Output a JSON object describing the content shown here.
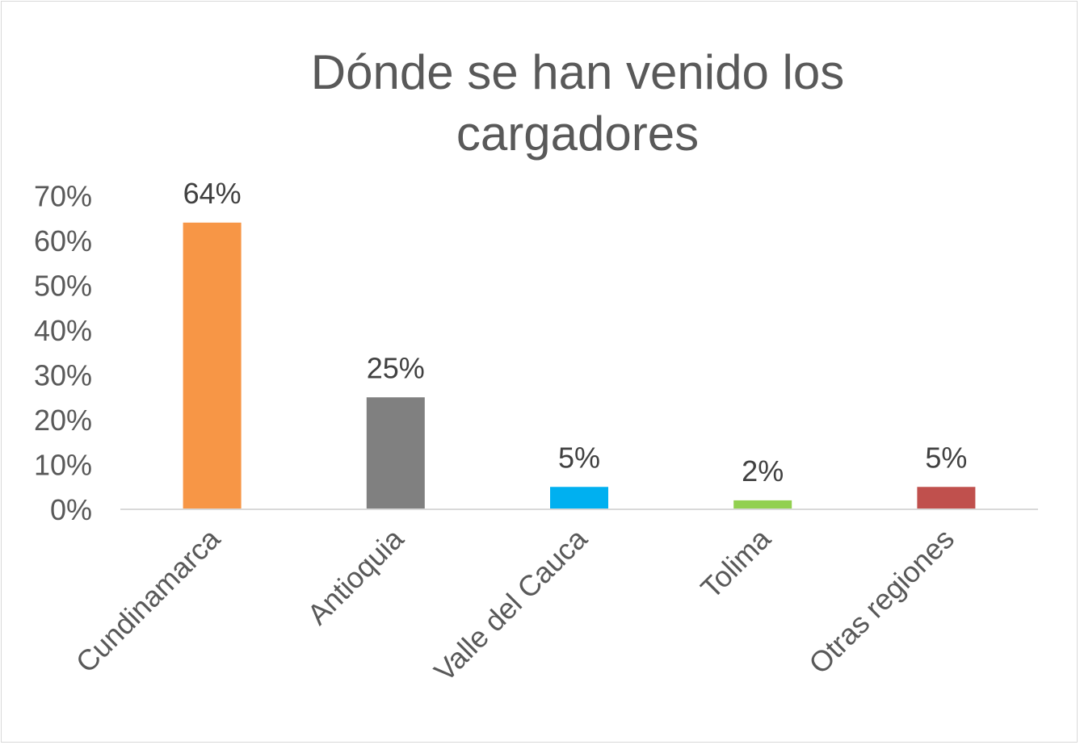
{
  "chart_data": {
    "type": "bar",
    "title_lines": [
      "Dónde se han venido los",
      "cargadores"
    ],
    "categories": [
      "Cundinamarca",
      "Antioquia",
      "Valle del Cauca",
      "Tolima",
      "Otras regiones"
    ],
    "values": [
      64,
      25,
      5,
      2,
      5
    ],
    "value_labels": [
      "64%",
      "25%",
      "5%",
      "2%",
      "5%"
    ],
    "colors": [
      "#f79646",
      "#808080",
      "#00b0f0",
      "#92d050",
      "#c0504d"
    ],
    "ylim": [
      0,
      70
    ],
    "yticks": [
      0,
      10,
      20,
      30,
      40,
      50,
      60,
      70
    ],
    "ytick_labels": [
      "0%",
      "10%",
      "20%",
      "30%",
      "40%",
      "50%",
      "60%",
      "70%"
    ],
    "xlabel": "",
    "ylabel": "",
    "grid": false,
    "legend": "none"
  }
}
